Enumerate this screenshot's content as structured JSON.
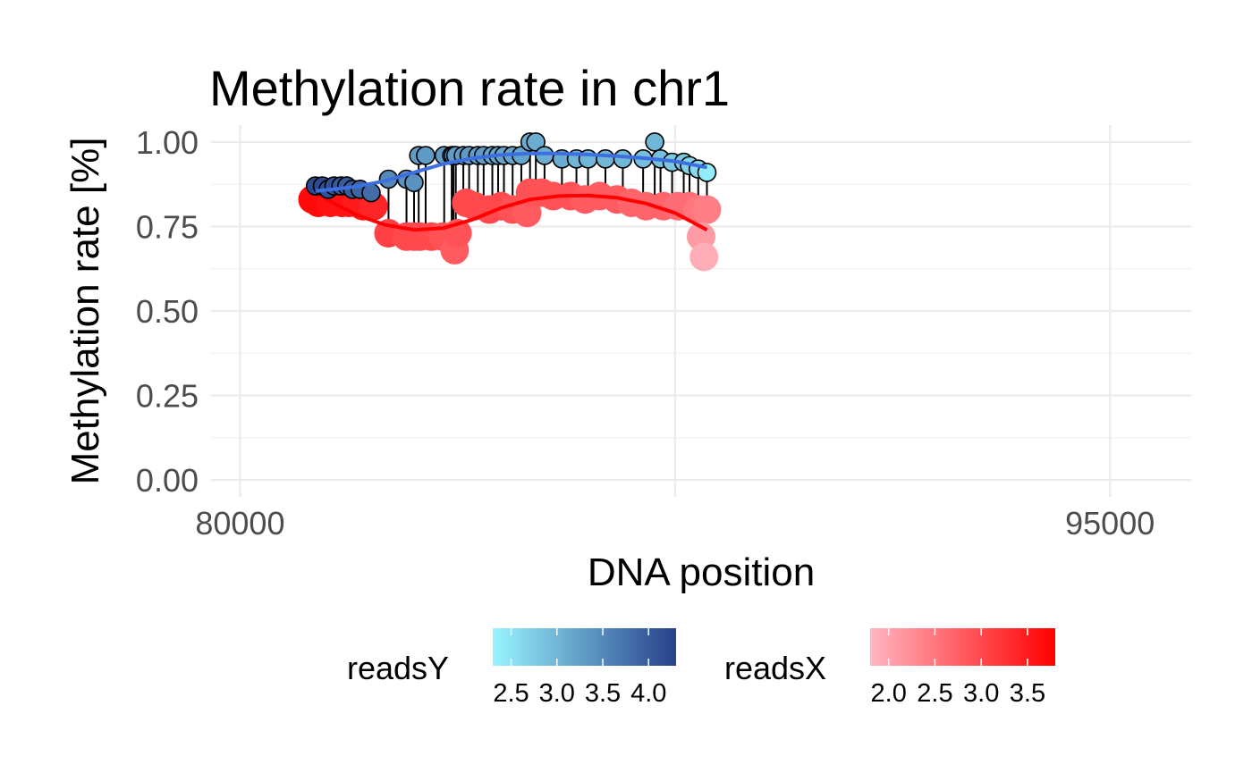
{
  "chart_data": {
    "type": "scatter",
    "title": "Methylation rate in chr1",
    "xlabel": "DNA position",
    "ylabel": "Methylation rate [%]",
    "xlim": [
      79500,
      96400
    ],
    "ylim": [
      -0.05,
      1.05
    ],
    "x_ticks": [
      80000,
      87500,
      95000
    ],
    "x_tick_labels": [
      "80000",
      "",
      "95000"
    ],
    "y_ticks": [
      0.0,
      0.25,
      0.5,
      0.75,
      1.0
    ],
    "y_tick_labels": [
      "0.00",
      "0.25",
      "0.50",
      "0.75",
      "1.00"
    ],
    "grid": true,
    "legend_position": "bottom",
    "series": [
      {
        "name": "readsY",
        "color_scale": {
          "low": "#98f5ff",
          "high": "#27408b",
          "domain": [
            2.3,
            4.3
          ]
        },
        "outline": "#000000",
        "points": [
          [
            81300,
            0.87,
            4.2
          ],
          [
            81420,
            0.87,
            4.2
          ],
          [
            81520,
            0.86,
            4.1
          ],
          [
            81620,
            0.87,
            4.1
          ],
          [
            81740,
            0.87,
            4.0
          ],
          [
            81840,
            0.87,
            4.0
          ],
          [
            81940,
            0.86,
            4.0
          ],
          [
            82070,
            0.86,
            3.9
          ],
          [
            82260,
            0.85,
            3.8
          ],
          [
            82560,
            0.89,
            3.5
          ],
          [
            82870,
            0.89,
            3.4
          ],
          [
            83000,
            0.88,
            3.4
          ],
          [
            83080,
            0.96,
            3.3
          ],
          [
            83200,
            0.96,
            3.3
          ],
          [
            83520,
            0.96,
            3.3
          ],
          [
            83650,
            0.96,
            3.3
          ],
          [
            83680,
            0.96,
            3.3
          ],
          [
            83720,
            0.96,
            3.3
          ],
          [
            83850,
            0.96,
            3.3
          ],
          [
            83950,
            0.96,
            3.3
          ],
          [
            84100,
            0.96,
            3.3
          ],
          [
            84200,
            0.96,
            3.3
          ],
          [
            84350,
            0.96,
            3.2
          ],
          [
            84450,
            0.96,
            3.2
          ],
          [
            84550,
            0.96,
            3.2
          ],
          [
            84700,
            0.96,
            3.2
          ],
          [
            84850,
            0.96,
            3.2
          ],
          [
            85000,
            1.0,
            3.1
          ],
          [
            85100,
            1.0,
            3.1
          ],
          [
            85250,
            0.96,
            3.1
          ],
          [
            85550,
            0.95,
            3.1
          ],
          [
            85800,
            0.95,
            3.0
          ],
          [
            86000,
            0.95,
            3.0
          ],
          [
            86300,
            0.95,
            3.0
          ],
          [
            86600,
            0.95,
            3.0
          ],
          [
            86950,
            0.95,
            2.9
          ],
          [
            87150,
            1.0,
            3.0
          ],
          [
            87250,
            0.95,
            2.9
          ],
          [
            87450,
            0.94,
            2.8
          ],
          [
            87650,
            0.94,
            2.8
          ],
          [
            87750,
            0.93,
            2.7
          ],
          [
            87900,
            0.92,
            2.6
          ],
          [
            88050,
            0.91,
            2.4
          ]
        ]
      },
      {
        "name": "readsX",
        "color_scale": {
          "low": "#ffb6c1",
          "high": "#ff0000",
          "domain": [
            1.8,
            3.8
          ]
        },
        "outline": "none",
        "points": [
          [
            81250,
            0.83,
            3.7
          ],
          [
            81350,
            0.82,
            3.7
          ],
          [
            81450,
            0.83,
            3.7
          ],
          [
            81560,
            0.82,
            3.6
          ],
          [
            81660,
            0.83,
            3.6
          ],
          [
            81760,
            0.82,
            3.6
          ],
          [
            81880,
            0.82,
            3.6
          ],
          [
            82000,
            0.82,
            3.5
          ],
          [
            82120,
            0.81,
            3.5
          ],
          [
            82300,
            0.81,
            3.4
          ],
          [
            82560,
            0.73,
            3.1
          ],
          [
            82870,
            0.72,
            3.0
          ],
          [
            83000,
            0.72,
            3.0
          ],
          [
            83100,
            0.72,
            3.0
          ],
          [
            83300,
            0.72,
            3.0
          ],
          [
            83500,
            0.72,
            2.9
          ],
          [
            83650,
            0.72,
            2.9
          ],
          [
            83700,
            0.68,
            2.8
          ],
          [
            83750,
            0.73,
            2.9
          ],
          [
            83900,
            0.82,
            3.0
          ],
          [
            84050,
            0.81,
            3.0
          ],
          [
            84300,
            0.8,
            3.0
          ],
          [
            84500,
            0.81,
            3.0
          ],
          [
            84700,
            0.8,
            2.9
          ],
          [
            84950,
            0.79,
            2.8
          ],
          [
            85000,
            0.85,
            2.9
          ],
          [
            85200,
            0.85,
            2.9
          ],
          [
            85400,
            0.84,
            2.9
          ],
          [
            85700,
            0.84,
            2.9
          ],
          [
            85950,
            0.83,
            2.8
          ],
          [
            86200,
            0.84,
            2.8
          ],
          [
            86500,
            0.83,
            2.8
          ],
          [
            86750,
            0.82,
            2.7
          ],
          [
            87000,
            0.81,
            2.7
          ],
          [
            87300,
            0.81,
            2.7
          ],
          [
            87550,
            0.81,
            2.6
          ],
          [
            87750,
            0.81,
            2.6
          ],
          [
            87900,
            0.8,
            2.5
          ],
          [
            88050,
            0.8,
            2.4
          ],
          [
            87950,
            0.72,
            2.1
          ],
          [
            88000,
            0.66,
            1.9
          ]
        ]
      }
    ],
    "smooth_lines": [
      {
        "series": "readsY",
        "color": "#3d6fe0",
        "x": [
          81300,
          81600,
          82000,
          82500,
          83000,
          83500,
          84000,
          84500,
          85000,
          85500,
          86000,
          86500,
          87000,
          87500,
          88050
        ],
        "y": [
          0.855,
          0.86,
          0.868,
          0.885,
          0.91,
          0.935,
          0.952,
          0.962,
          0.966,
          0.966,
          0.963,
          0.958,
          0.952,
          0.943,
          0.925
        ]
      },
      {
        "series": "readsX",
        "color": "#ff0000",
        "x": [
          81300,
          81600,
          82000,
          82500,
          83000,
          83500,
          84000,
          84500,
          85000,
          85500,
          86000,
          86500,
          87000,
          87500,
          88050
        ],
        "y": [
          0.85,
          0.82,
          0.785,
          0.755,
          0.74,
          0.745,
          0.77,
          0.805,
          0.83,
          0.84,
          0.842,
          0.835,
          0.818,
          0.79,
          0.74
        ]
      }
    ],
    "legends": [
      {
        "title": "readsY",
        "tick_labels": [
          "2.5",
          "3.0",
          "3.5",
          "4.0"
        ],
        "tick_values": [
          2.5,
          3.0,
          3.5,
          4.0
        ]
      },
      {
        "title": "readsX",
        "tick_labels": [
          "2.0",
          "2.5",
          "3.0",
          "3.5"
        ],
        "tick_values": [
          2.0,
          2.5,
          3.0,
          3.5
        ]
      }
    ]
  }
}
